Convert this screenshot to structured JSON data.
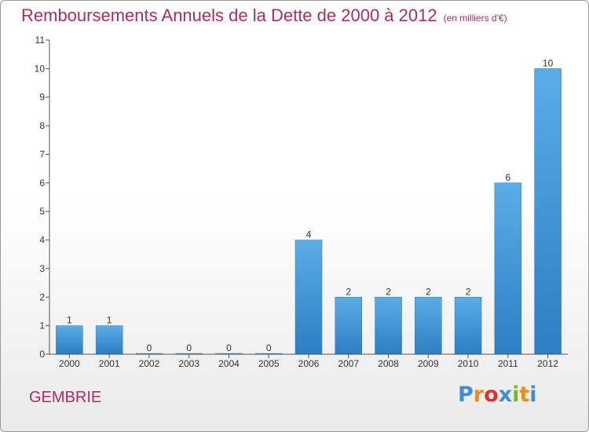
{
  "header": {
    "title": "Remboursements Annuels de la Dette de 2000 à 2012",
    "subtitle": "(en milliers d'€)"
  },
  "footer": {
    "commune": "GEMBRIE",
    "logo_letters": [
      "P",
      "r",
      "o",
      "x",
      "i",
      "t",
      "i"
    ],
    "logo_colors": [
      "#3d8fd1",
      "#f18a1c",
      "#e2312f",
      "#3d8fd1",
      "#7ab829",
      "#f18a1c",
      "#3d8fd1"
    ]
  },
  "chart_data": {
    "type": "bar",
    "title": "Remboursements Annuels de la Dette de 2000 à 2012",
    "subtitle": "(en milliers d'€)",
    "xlabel": "",
    "ylabel": "",
    "categories": [
      "2000",
      "2001",
      "2002",
      "2003",
      "2004",
      "2005",
      "2006",
      "2007",
      "2008",
      "2009",
      "2010",
      "2011",
      "2012"
    ],
    "values": [
      1,
      1,
      0,
      0,
      0,
      0,
      4,
      2,
      2,
      2,
      2,
      6,
      10
    ],
    "data_labels": [
      "1",
      "1",
      "0",
      "0",
      "0",
      "0",
      "4",
      "2",
      "2",
      "2",
      "2",
      "6",
      "10"
    ],
    "ylim": [
      0,
      11
    ],
    "yticks": [
      0,
      1,
      2,
      3,
      4,
      5,
      6,
      7,
      8,
      9,
      10,
      11
    ],
    "ytick_labels": [
      "0",
      "1",
      "2",
      "3",
      "4",
      "5",
      "6",
      "7",
      "8",
      "9",
      "10",
      "11"
    ],
    "grid": false,
    "bar_color": "#3f95d8",
    "axis_color": "#555555"
  }
}
